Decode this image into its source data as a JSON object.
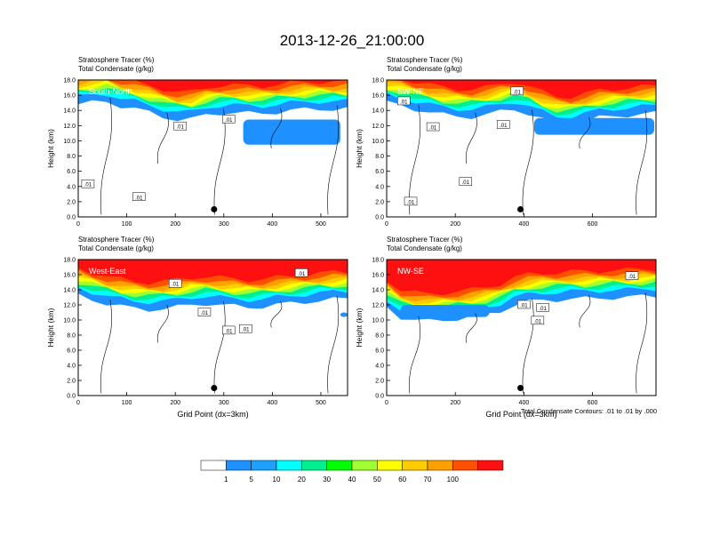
{
  "title": "2013-12-26_21:00:00",
  "footnote": "Total Condensate Contours: .01 to .01 by .000",
  "colorbar": {
    "colors": [
      "#ffffff",
      "#1e90ff",
      "#1ea0ff",
      "#00ffff",
      "#00f090",
      "#00ff00",
      "#a0ff30",
      "#ffff00",
      "#ffcc00",
      "#ffa000",
      "#ff5000",
      "#ff1010"
    ],
    "labels": [
      "1",
      "5",
      "10",
      "20",
      "30",
      "40",
      "50",
      "60",
      "70",
      "100"
    ]
  },
  "chart_data": [
    {
      "type": "contour",
      "panel": "South-North",
      "header_line1": "Stratosphere Tracer   (%)",
      "header_line2": "Total Condensate   (g/kg)",
      "ylabel": "Height (km)",
      "xlabel": "",
      "xlim": [
        0,
        555
      ],
      "ylim": [
        0,
        18
      ],
      "xticks": [
        "0",
        "100",
        "200",
        "300",
        "400",
        "500"
      ],
      "xtick_values": [
        0,
        100,
        200,
        300,
        400,
        500
      ],
      "yticks": [
        "0.0",
        "2.0",
        "4.0",
        "6.0",
        "8.0",
        "10.0",
        "12.0",
        "14.0",
        "16.0",
        "18.0"
      ],
      "contour_labels": [
        {
          "text": ".01",
          "x": 20,
          "y": 4.3
        },
        {
          "text": ".01",
          "x": 125,
          "y": 2.6
        },
        {
          "text": ".01",
          "x": 210,
          "y": 11.9
        },
        {
          "text": ".01",
          "x": 310,
          "y": 12.8
        }
      ],
      "marker": {
        "x": 280,
        "y": 1.0
      },
      "stratosphere_boundary_km": [
        15.6,
        15.8,
        16.0,
        15.4,
        15.0,
        14.5,
        14.0,
        13.6,
        13.6,
        14.2,
        14.5,
        14.5,
        14.4,
        14.4,
        14.6,
        14.8,
        14.9,
        15.0,
        15.0,
        15.0
      ],
      "tracer_blob": {
        "x0": 340,
        "x1": 540,
        "y_low": 9.5,
        "y_high": 12.8
      }
    },
    {
      "type": "contour",
      "panel": "SW-NE",
      "header_line1": "Stratosphere Tracer   (%)",
      "header_line2": "Total Condensate   (g/kg)",
      "ylabel": "Height (km)",
      "xlabel": "",
      "xlim": [
        0,
        785
      ],
      "ylim": [
        0,
        18
      ],
      "xticks": [
        "0",
        "200",
        "400",
        "600"
      ],
      "xtick_values": [
        0,
        200,
        400,
        600
      ],
      "yticks": [
        "0.0",
        "2.0",
        "4.0",
        "6.0",
        "8.0",
        "10.0",
        "12.0",
        "14.0",
        "16.0",
        "18.0"
      ],
      "contour_labels": [
        {
          "text": ".01",
          "x": 50,
          "y": 15.2
        },
        {
          "text": ".01",
          "x": 380,
          "y": 16.5
        },
        {
          "text": ".01",
          "x": 135,
          "y": 11.8
        },
        {
          "text": ".01",
          "x": 340,
          "y": 12.1
        },
        {
          "text": ".01",
          "x": 230,
          "y": 4.6
        },
        {
          "text": ".01",
          "x": 70,
          "y": 2.0
        }
      ],
      "marker": {
        "x": 390,
        "y": 1.0
      },
      "stratosphere_boundary_km": [
        15.8,
        15.4,
        15.0,
        14.6,
        14.2,
        14.0,
        14.0,
        14.2,
        14.6,
        15.0,
        14.4,
        13.6,
        13.0,
        13.0,
        13.4,
        13.8,
        14.0,
        14.2,
        14.3,
        14.4
      ],
      "tracer_blob": {
        "x0": 430,
        "x1": 780,
        "y_low": 10.8,
        "y_high": 13.0
      }
    },
    {
      "type": "contour",
      "panel": "West-East",
      "header_line1": "Stratosphere Tracer   (%)",
      "header_line2": "Total Condensate   (g/kg)",
      "ylabel": "Height (km)",
      "xlabel": "Grid Point (dx=3km)",
      "xlim": [
        0,
        555
      ],
      "ylim": [
        0,
        18
      ],
      "xticks": [
        "0",
        "100",
        "200",
        "300",
        "400",
        "500"
      ],
      "xtick_values": [
        0,
        100,
        200,
        300,
        400,
        500
      ],
      "yticks": [
        "0.0",
        "2.0",
        "4.0",
        "6.0",
        "8.0",
        "10.0",
        "12.0",
        "14.0",
        "16.0",
        "18.0"
      ],
      "contour_labels": [
        {
          "text": ".01",
          "x": 460,
          "y": 16.2
        },
        {
          "text": ".01",
          "x": 200,
          "y": 14.8
        },
        {
          "text": ".01",
          "x": 260,
          "y": 11.0
        },
        {
          "text": ".01",
          "x": 310,
          "y": 8.6
        },
        {
          "text": ".01",
          "x": 345,
          "y": 8.8
        }
      ],
      "marker": {
        "x": 280,
        "y": 1.0
      },
      "stratosphere_boundary_km": [
        14.0,
        13.5,
        13.0,
        12.6,
        12.3,
        12.2,
        12.3,
        12.5,
        12.8,
        13.0,
        12.8,
        12.6,
        12.5,
        12.6,
        12.8,
        13.0,
        13.2,
        13.4,
        13.5,
        13.6
      ],
      "tracer_blob": {
        "x0": 540,
        "x1": 555,
        "y_low": 10.4,
        "y_high": 11.0
      }
    },
    {
      "type": "contour",
      "panel": "NW-SE",
      "header_line1": "Stratosphere Tracer   (%)",
      "header_line2": "Total Condensate   (g/kg)",
      "ylabel": "Height (km)",
      "xlabel": "Grid Point (dx=3km)",
      "xlim": [
        0,
        785
      ],
      "ylim": [
        0,
        18
      ],
      "xticks": [
        "0",
        "200",
        "400",
        "600"
      ],
      "xtick_values": [
        0,
        200,
        400,
        600
      ],
      "yticks": [
        "0.0",
        "2.0",
        "4.0",
        "6.0",
        "8.0",
        "10.0",
        "12.0",
        "14.0",
        "16.0",
        "18.0"
      ],
      "contour_labels": [
        {
          "text": ".01",
          "x": 715,
          "y": 15.8
        },
        {
          "text": ".01",
          "x": 400,
          "y": 12.0
        },
        {
          "text": ".01",
          "x": 455,
          "y": 11.6
        },
        {
          "text": ".01",
          "x": 440,
          "y": 9.9
        }
      ],
      "marker": {
        "x": 390,
        "y": 1.0
      },
      "stratosphere_boundary_km": [
        12.5,
        11.2,
        10.8,
        10.6,
        10.8,
        11.0,
        11.2,
        11.5,
        12.0,
        12.8,
        13.2,
        13.4,
        13.5,
        13.6,
        13.6,
        13.7,
        13.8,
        13.8,
        13.9,
        14.0
      ],
      "tracer_blob": {
        "x0": 40,
        "x1": 300,
        "y_low": 10.4,
        "y_high": 12.0
      }
    }
  ]
}
